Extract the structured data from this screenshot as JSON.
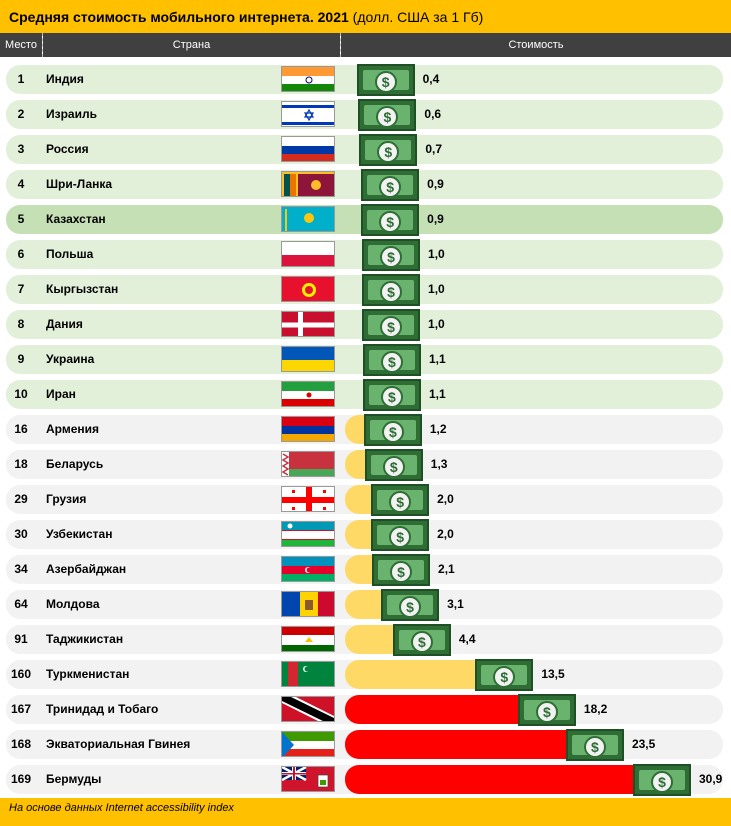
{
  "title": {
    "bold": "Средняя стоимость мобильного интернета. 2021",
    "rest": " (долл. США за 1 Гб)"
  },
  "headers": {
    "rank": "Место",
    "country": "Страна",
    "cost": "Стоимость"
  },
  "footer": "На основе данных Internet accessibility index",
  "colors": {
    "row_highlight": "#e2efd9",
    "row_selected": "#c5e0b4",
    "row_default": "#f2f2f2",
    "bar_low": "#ffd966",
    "bar_high": "#ff0000",
    "bill": "#2e6e35"
  },
  "bill_symbol": "$",
  "rows": [
    {
      "rank": "1",
      "country": "Индия",
      "value": "0,4",
      "flag": "india"
    },
    {
      "rank": "2",
      "country": "Израиль",
      "value": "0,6",
      "flag": "israel"
    },
    {
      "rank": "3",
      "country": "Россия",
      "value": "0,7",
      "flag": "russia"
    },
    {
      "rank": "4",
      "country": "Шри-Ланка",
      "value": "0,9",
      "flag": "srilanka"
    },
    {
      "rank": "5",
      "country": "Казахстан",
      "value": "0,9",
      "flag": "kazakhstan"
    },
    {
      "rank": "6",
      "country": "Польша",
      "value": "1,0",
      "flag": "poland"
    },
    {
      "rank": "7",
      "country": "Кыргызстан",
      "value": "1,0",
      "flag": "kyrgyzstan"
    },
    {
      "rank": "8",
      "country": "Дания",
      "value": "1,0",
      "flag": "denmark"
    },
    {
      "rank": "9",
      "country": "Украина",
      "value": "1,1",
      "flag": "ukraine"
    },
    {
      "rank": "10",
      "country": "Иран",
      "value": "1,1",
      "flag": "iran"
    },
    {
      "rank": "16",
      "country": "Армения",
      "value": "1,2",
      "flag": "armenia"
    },
    {
      "rank": "18",
      "country": "Беларусь",
      "value": "1,3",
      "flag": "belarus"
    },
    {
      "rank": "29",
      "country": "Грузия",
      "value": "2,0",
      "flag": "georgia"
    },
    {
      "rank": "30",
      "country": "Узбекистан",
      "value": "2,0",
      "flag": "uzbekistan"
    },
    {
      "rank": "34",
      "country": "Азербайджан",
      "value": "2,1",
      "flag": "azerbaijan"
    },
    {
      "rank": "64",
      "country": "Молдова",
      "value": "3,1",
      "flag": "moldova"
    },
    {
      "rank": "91",
      "country": "Таджикистан",
      "value": "4,4",
      "flag": "tajikistan"
    },
    {
      "rank": "160",
      "country": "Туркменистан",
      "value": "13,5",
      "flag": "turkmenistan"
    },
    {
      "rank": "167",
      "country": "Тринидад и Тобаго",
      "value": "18,2",
      "flag": "trinidad"
    },
    {
      "rank": "168",
      "country": "Экваториальная Гвинея",
      "value": "23,5",
      "flag": "eqguinea"
    },
    {
      "rank": "169",
      "country": "Бермуды",
      "value": "30,9",
      "flag": "bermuda"
    }
  ],
  "chart_data": {
    "type": "bar",
    "title": "Средняя стоимость мобильного интернета. 2021 (долл. США за 1 Гб)",
    "xlabel": "Страна",
    "ylabel": "Стоимость",
    "categories": [
      "Индия",
      "Израиль",
      "Россия",
      "Шри-Ланка",
      "Казахстан",
      "Польша",
      "Кыргызстан",
      "Дания",
      "Украина",
      "Иран",
      "Армения",
      "Беларусь",
      "Грузия",
      "Узбекистан",
      "Азербайджан",
      "Молдова",
      "Таджикистан",
      "Туркменистан",
      "Тринидад и Тобаго",
      "Экваториальная Гвинея",
      "Бермуды"
    ],
    "values": [
      0.4,
      0.6,
      0.7,
      0.9,
      0.9,
      1.0,
      1.0,
      1.0,
      1.1,
      1.1,
      1.2,
      1.3,
      2.0,
      2.0,
      2.1,
      3.1,
      4.4,
      13.5,
      18.2,
      23.5,
      30.9
    ],
    "xlim": [
      0,
      30.9
    ]
  }
}
